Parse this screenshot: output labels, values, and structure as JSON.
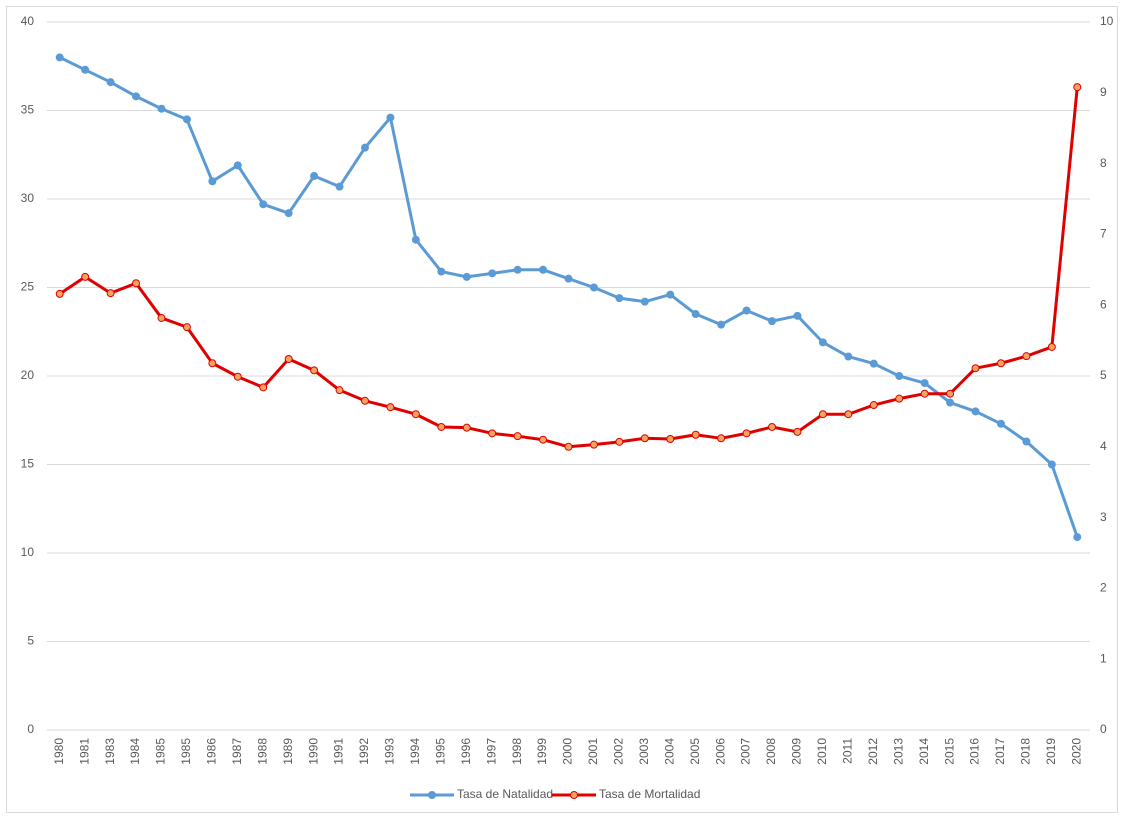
{
  "chart_data": {
    "type": "line",
    "categories": [
      "1980",
      "1981",
      "1983",
      "1984",
      "1985",
      "1985",
      "1986",
      "1987",
      "1988",
      "1989",
      "1990",
      "1991",
      "1992",
      "1993",
      "1994",
      "1995",
      "1996",
      "1997",
      "1998",
      "1999",
      "2000",
      "2001",
      "2002",
      "2003",
      "2004",
      "2005",
      "2006",
      "2007",
      "2008",
      "2009",
      "2010",
      "2011",
      "2012",
      "2013",
      "2014",
      "2015",
      "2016",
      "2017",
      "2018",
      "2019",
      "2020"
    ],
    "series": [
      {
        "name": "Tasa de Natalidad",
        "color": "#5b9bd5",
        "marker_fill": "#5b9bd5",
        "values": [
          38.0,
          37.3,
          36.6,
          35.8,
          35.1,
          34.5,
          31.0,
          31.9,
          29.7,
          29.2,
          31.3,
          30.7,
          32.9,
          34.6,
          27.7,
          25.9,
          25.6,
          25.8,
          26.0,
          26.0,
          25.5,
          25.0,
          24.4,
          24.2,
          24.6,
          23.5,
          22.9,
          23.7,
          23.1,
          23.4,
          21.9,
          21.1,
          20.7,
          20.0,
          19.6,
          18.5,
          18.0,
          17.3,
          16.3,
          15.0,
          10.9
        ]
      },
      {
        "name": "Tasa de Mortalidad",
        "color": "#e00000",
        "marker_fill": "#f4a460",
        "axis": "y2",
        "values": [
          6.16,
          6.4,
          6.17,
          6.31,
          5.82,
          5.69,
          5.18,
          4.99,
          4.84,
          5.24,
          5.08,
          4.8,
          4.65,
          4.56,
          4.46,
          4.28,
          4.27,
          4.19,
          4.15,
          4.1,
          4.0,
          4.03,
          4.07,
          4.12,
          4.11,
          4.17,
          4.12,
          4.19,
          4.28,
          4.21,
          4.46,
          4.46,
          4.59,
          4.68,
          4.75,
          4.75,
          5.11,
          5.18,
          5.28,
          5.41,
          9.08
        ]
      }
    ],
    "ylim": [
      0,
      40
    ],
    "yticks": [
      0,
      5,
      10,
      15,
      20,
      25,
      30,
      35,
      40
    ],
    "y2lim": [
      0,
      10
    ],
    "y2ticks": [
      0,
      1,
      2,
      3,
      4,
      5,
      6,
      7,
      8,
      9,
      10
    ],
    "grid": true
  }
}
